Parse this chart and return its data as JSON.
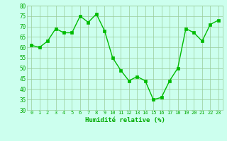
{
  "x": [
    0,
    1,
    2,
    3,
    4,
    5,
    6,
    7,
    8,
    9,
    10,
    11,
    12,
    13,
    14,
    15,
    16,
    17,
    18,
    19,
    20,
    21,
    22,
    23
  ],
  "y": [
    61,
    60,
    63,
    69,
    67,
    67,
    75,
    72,
    76,
    68,
    55,
    49,
    44,
    46,
    44,
    35,
    36,
    44,
    50,
    69,
    67,
    63,
    71,
    73
  ],
  "line_color": "#00bb00",
  "marker_color": "#00bb00",
  "bg_color": "#ccffee",
  "grid_color": "#99cc99",
  "xlabel": "Humidité relative (%)",
  "xlabel_color": "#00aa00",
  "tick_color": "#00aa00",
  "ylim": [
    30,
    80
  ],
  "xlim_min": -0.5,
  "xlim_max": 23.5,
  "yticks": [
    30,
    35,
    40,
    45,
    50,
    55,
    60,
    65,
    70,
    75,
    80
  ],
  "xticks": [
    0,
    1,
    2,
    3,
    4,
    5,
    6,
    7,
    8,
    9,
    10,
    11,
    12,
    13,
    14,
    15,
    16,
    17,
    18,
    19,
    20,
    21,
    22,
    23
  ]
}
